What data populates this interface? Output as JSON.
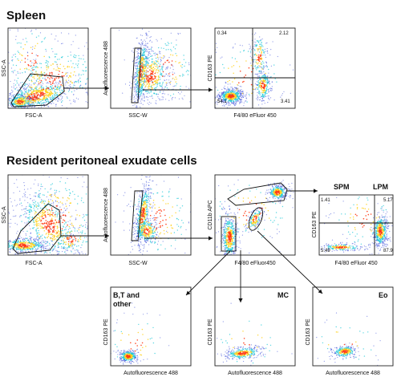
{
  "sections": {
    "spleen": "Spleen",
    "peritoneal": "Resident peritoneal exudate cells"
  },
  "panels": [
    {
      "id": "s1",
      "xlabel": "FSC-A",
      "ylabel": "SSC-A"
    },
    {
      "id": "s2",
      "xlabel": "SSC-W",
      "ylabel": "Autofluorescence 488"
    },
    {
      "id": "s3",
      "xlabel": "F4/80 eFluor 450",
      "ylabel": "CD163 PE",
      "quad": [
        "0.34",
        "2.12",
        "54.1",
        "3.41"
      ]
    },
    {
      "id": "p1",
      "xlabel": "FSC-A",
      "ylabel": "SSC-A"
    },
    {
      "id": "p2",
      "xlabel": "SSC-W",
      "ylabel": "Autofluorescence 488"
    },
    {
      "id": "p3",
      "xlabel": "F4/80 eFluor450",
      "ylabel": "CD11b APC"
    },
    {
      "id": "p4",
      "xlabel": "F4/80 eFluor 450",
      "ylabel": "CD163 PE",
      "quad": [
        "1.41",
        "5.17",
        "5.49",
        "87.9"
      ],
      "labels": [
        "SPM",
        "LPM"
      ]
    },
    {
      "id": "b1",
      "xlabel": "Autofluorescence 488",
      "ylabel": "CD163 PE",
      "label": "B,T and other"
    },
    {
      "id": "b2",
      "xlabel": "Autofluorescence 488",
      "ylabel": "CD163 PE",
      "label": "MC"
    },
    {
      "id": "b3",
      "xlabel": "Autofluorescence 488",
      "ylabel": "CD163 PE",
      "label": "Eo"
    }
  ],
  "colors": {
    "density_low": "#2b3fd6",
    "density_mid": "#23c9d8",
    "density_high": "#ffd21f",
    "density_peak": "#ff3a14"
  }
}
